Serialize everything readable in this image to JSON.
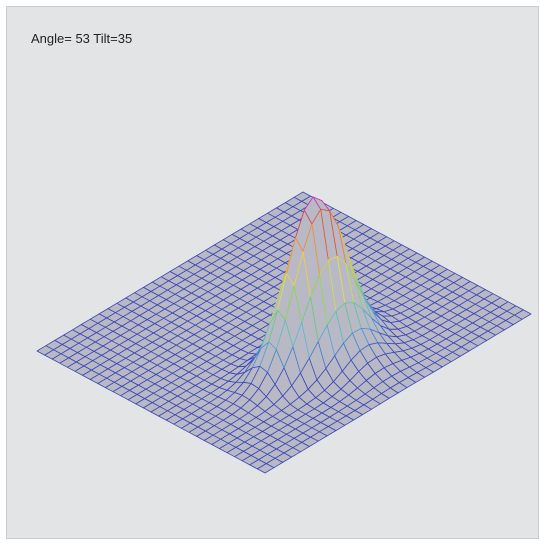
{
  "view": {
    "label": "Angle= 53 Tilt=35"
  },
  "chart_data": {
    "type": "surface",
    "grid_size": 30,
    "peak": {
      "x": 0.35,
      "y": 0.08,
      "height": 1.0,
      "sigma_x": 0.11,
      "sigma_y": 0.2
    },
    "secondary": {
      "x": 0.55,
      "y": -0.05,
      "height": 0.18,
      "sigma_x": 0.16,
      "sigma_y": 0.15
    },
    "colormap": [
      "#3a46b8",
      "#58b6e0",
      "#6fd25c",
      "#e9e04a",
      "#f3a23a",
      "#e0402c",
      "#c23ac0"
    ],
    "base_color": "#3a46b8",
    "surface_fill": "#b8b9c4"
  }
}
